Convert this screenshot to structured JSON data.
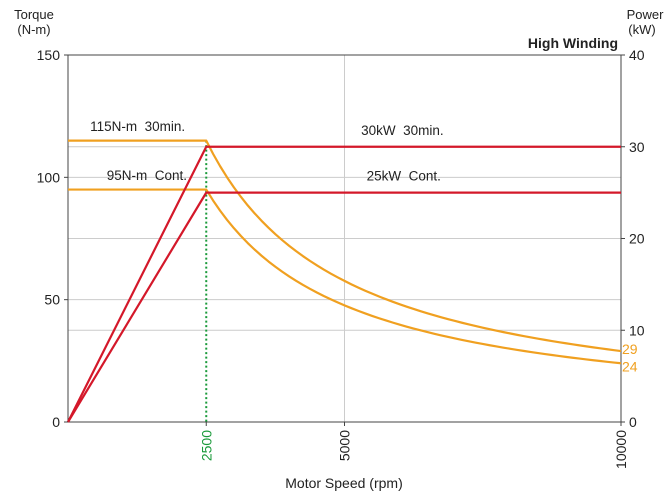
{
  "chart_data": {
    "type": "line",
    "title": "High Winding",
    "xlabel": "Motor Speed (rpm)",
    "ylabel_left": "Torque\n(N-m)",
    "ylabel_right": "Power\n(kW)",
    "xlim": [
      0,
      10000
    ],
    "ylim_left": [
      0,
      150
    ],
    "ylim_right": [
      0,
      40
    ],
    "x_ticks": [
      {
        "value": 2500,
        "label": "2500",
        "color": "#1a9a3a"
      },
      {
        "value": 5000,
        "label": "5000",
        "color": "#222222"
      },
      {
        "value": 10000,
        "label": "10000",
        "color": "#222222"
      }
    ],
    "y_left_ticks": [
      0,
      50,
      100,
      150
    ],
    "y_right_ticks": [
      0,
      10,
      20,
      30,
      40
    ],
    "grid": true,
    "base_speed": 2500,
    "series": [
      {
        "name": "115N-m 30min.",
        "axis": "left",
        "color": "#f0a020",
        "x": [
          0,
          2500,
          3000,
          4000,
          5000,
          6000,
          7000,
          8000,
          9000,
          10000
        ],
        "y": [
          115,
          115,
          96,
          72,
          57.5,
          48,
          41,
          35.9,
          31.9,
          29
        ]
      },
      {
        "name": "95N-m Cont.",
        "axis": "left",
        "color": "#f0a020",
        "x": [
          0,
          2500,
          3000,
          4000,
          5000,
          6000,
          7000,
          8000,
          9000,
          10000
        ],
        "y": [
          95,
          95,
          79,
          59.5,
          47.5,
          39.6,
          34,
          29.7,
          26.4,
          24
        ]
      },
      {
        "name": "30kW 30min.",
        "axis": "right",
        "color": "#d4182a",
        "x": [
          0,
          2500,
          10000
        ],
        "y": [
          0,
          30,
          30
        ]
      },
      {
        "name": "25kW Cont.",
        "axis": "right",
        "color": "#d4182a",
        "x": [
          0,
          2500,
          10000
        ],
        "y": [
          0,
          25,
          25
        ]
      }
    ],
    "end_labels": [
      {
        "text": "29",
        "value": 29,
        "color": "#f0a020"
      },
      {
        "text": "24",
        "value": 24,
        "color": "#f0a020"
      }
    ],
    "annotations": [
      {
        "text": "115N-m  30min.",
        "x": 400,
        "y": 119
      },
      {
        "text": "95N-m  Cont.",
        "x": 700,
        "y": 99
      },
      {
        "text": "30kW  30min.",
        "x": 5300,
        "y": 31.3
      },
      {
        "text": "25kW  Cont.",
        "x": 5400,
        "y": 26.3
      }
    ]
  }
}
